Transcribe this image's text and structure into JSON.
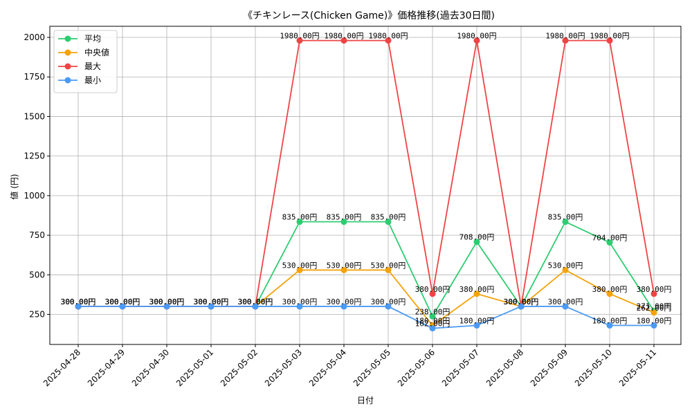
{
  "chart_data": {
    "type": "line",
    "title": "《チキンレース(Chicken Game)》価格推移(過去30日間)",
    "xlabel": "日付",
    "ylabel": "値 (円)",
    "ylim": [
      60,
      2070
    ],
    "yticks": [
      250,
      500,
      750,
      1000,
      1250,
      1500,
      1750,
      2000
    ],
    "grid": true,
    "legend_position": "top-left",
    "value_suffix": "円",
    "categories": [
      "2025-04-28",
      "2025-04-29",
      "2025-04-30",
      "2025-05-01",
      "2025-05-02",
      "2025-05-03",
      "2025-05-04",
      "2025-05-05",
      "2025-05-06",
      "2025-05-07",
      "2025-05-08",
      "2025-05-09",
      "2025-05-10",
      "2025-05-11"
    ],
    "series": [
      {
        "name": "平均",
        "color": "#2ecc71",
        "values": [
          300,
          300,
          300,
          300,
          300,
          835,
          835,
          835,
          238,
          708,
          300,
          835,
          704,
          271
        ]
      },
      {
        "name": "中央値",
        "color": "#f5a30b",
        "values": [
          300,
          300,
          300,
          300,
          300,
          530,
          530,
          530,
          180,
          380,
          300,
          530,
          380,
          262
        ]
      },
      {
        "name": "最大",
        "color": "#ef4444",
        "values": [
          300,
          300,
          300,
          300,
          300,
          1980,
          1980,
          1980,
          380,
          1980,
          300,
          1980,
          1980,
          380
        ]
      },
      {
        "name": "最小",
        "color": "#4a9af5",
        "values": [
          300,
          300,
          300,
          300,
          300,
          300,
          300,
          300,
          162,
          180,
          300,
          300,
          180,
          180
        ]
      }
    ]
  }
}
